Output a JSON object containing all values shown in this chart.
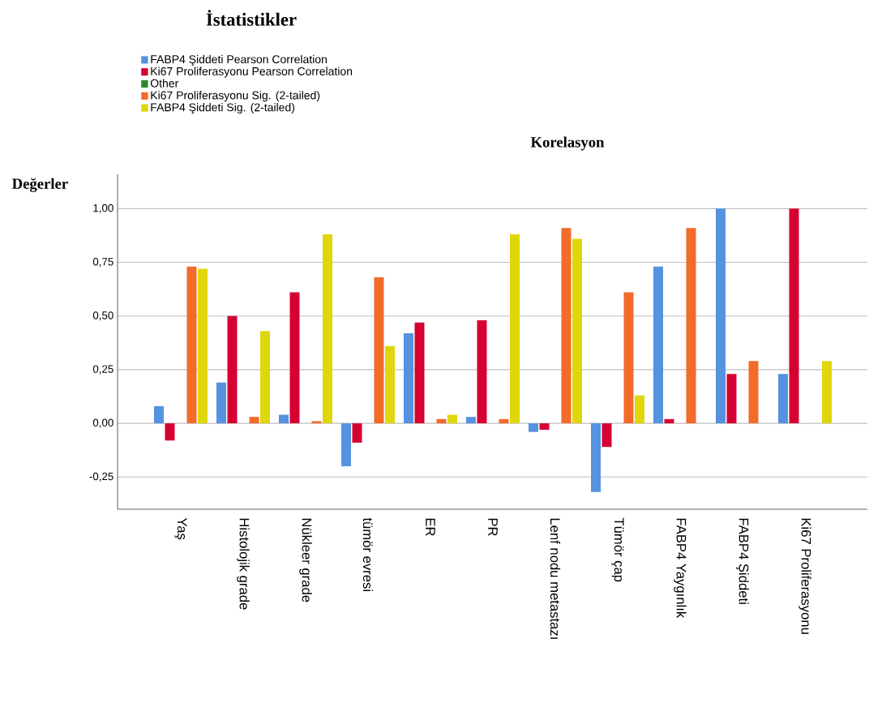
{
  "chart_data": {
    "type": "bar",
    "title": "İstatistikler",
    "subtitle": "Korelasyon",
    "ylabel": "Değerler",
    "categories": [
      "Yaş",
      "Histolojik grade",
      "Nükleer grade",
      "tümör evresi",
      "ER",
      "PR",
      "Lenf nodu metastazı",
      "Tümör çap",
      "FABP4 Yaygınlık",
      "FABP4 Şiddeti",
      "Ki67 Proliferasyonu"
    ],
    "series": [
      {
        "name": "FABP4 Şiddeti Pearson Correlation",
        "color": "#5592e0",
        "values": [
          0.08,
          0.19,
          0.04,
          -0.2,
          0.42,
          0.03,
          -0.04,
          -0.32,
          0.73,
          1.0,
          0.23
        ]
      },
      {
        "name": "Ki67 Proliferasyonu Pearson Correlation",
        "color": "#d60032",
        "values": [
          -0.08,
          0.5,
          0.61,
          -0.09,
          0.47,
          0.48,
          -0.03,
          -0.11,
          0.02,
          0.23,
          1.0
        ]
      },
      {
        "name": "Other",
        "color": "#2a8a2a",
        "values": [
          null,
          null,
          null,
          null,
          null,
          null,
          null,
          null,
          null,
          null,
          null
        ]
      },
      {
        "name": "Ki67 Proliferasyonu Sig. (2-tailed)",
        "color": "#f26b2a",
        "values": [
          0.73,
          0.03,
          0.01,
          0.68,
          0.02,
          0.02,
          0.91,
          0.61,
          0.91,
          0.29,
          null
        ]
      },
      {
        "name": "FABP4 Şiddeti Sig. (2-tailed)",
        "color": "#e0d60c",
        "values": [
          0.72,
          0.43,
          0.88,
          0.36,
          0.04,
          0.88,
          0.86,
          0.13,
          0.0,
          null,
          0.29
        ]
      }
    ],
    "ylim": [
      -0.4,
      1.16
    ],
    "yticks": [
      {
        "value": -0.25,
        "label": "-0,25"
      },
      {
        "value": 0,
        "label": "0,00"
      },
      {
        "value": 0.25,
        "label": "0,25"
      },
      {
        "value": 0.5,
        "label": "0,50"
      },
      {
        "value": 0.75,
        "label": "0,75"
      },
      {
        "value": 1,
        "label": "1,00"
      }
    ],
    "grid": "y",
    "legend": "top left"
  }
}
